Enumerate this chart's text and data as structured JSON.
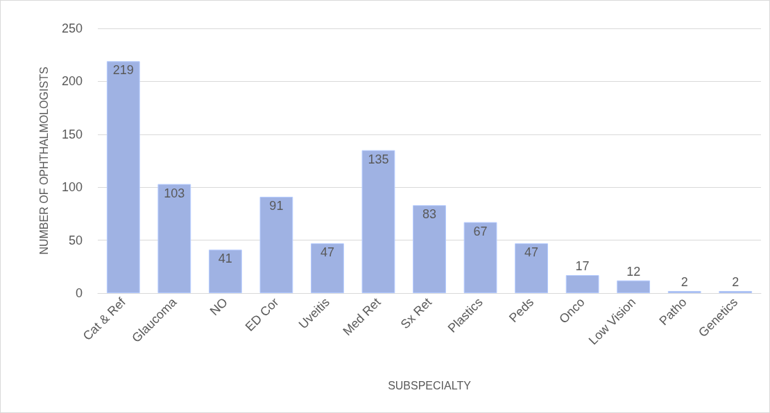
{
  "chart_data": {
    "type": "bar",
    "xlabel": "SUBSPECIALTY",
    "ylabel": "NUMBER OF OPHTHALMOLOGISTS",
    "categories": [
      "Cat & Ref",
      "Glaucoma",
      "NO",
      "ED Cor",
      "Uveitis",
      "Med Ret",
      "Sx Ret",
      "Plastics",
      "Peds",
      "Onco",
      "Low Vision",
      "Patho",
      "Genetics"
    ],
    "values": [
      219,
      103,
      41,
      91,
      47,
      135,
      83,
      67,
      47,
      17,
      12,
      2,
      2
    ],
    "color": "#9fb2e3",
    "ylim": [
      0,
      250
    ],
    "yticks": [
      0,
      50,
      100,
      150,
      200,
      250
    ],
    "grid": "y",
    "data_labels": true
  }
}
